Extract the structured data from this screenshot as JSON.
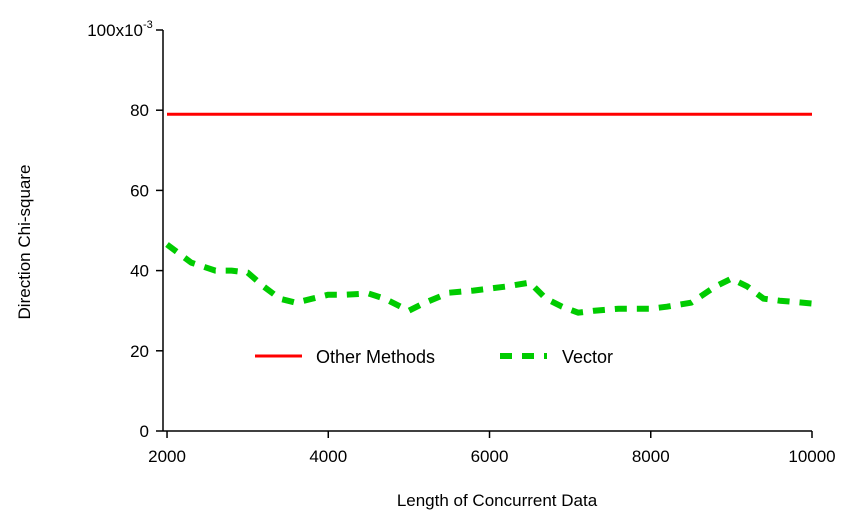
{
  "chart_data": {
    "type": "line",
    "title": "",
    "xlabel": "Length of Concurrent Data",
    "ylabel": "Direction Chi-square",
    "xlim": [
      1950,
      10000
    ],
    "ylim": [
      0,
      0.1
    ],
    "x_ticks": [
      2000,
      4000,
      6000,
      8000,
      10000
    ],
    "x_tick_labels": [
      "2000",
      "4000",
      "6000",
      "8000",
      "10000"
    ],
    "y_ticks": [
      0,
      0.02,
      0.04,
      0.06,
      0.08,
      0.1
    ],
    "y_tick_labels": [
      "0",
      "20",
      "40",
      "60",
      "80",
      "100x10"
    ],
    "y_exponent_label": "-3",
    "grid": false,
    "legend_position": "lower-center",
    "series": [
      {
        "name": "Other Methods",
        "color": "#ff0000",
        "style": "solid",
        "x": [
          2000,
          10000
        ],
        "y": [
          0.079,
          0.079
        ]
      },
      {
        "name": "Vector",
        "color": "#00cc00",
        "style": "dashed",
        "x": [
          2000,
          2300,
          2600,
          2800,
          3000,
          3200,
          3400,
          3600,
          3800,
          4000,
          4200,
          4500,
          4700,
          5000,
          5200,
          5500,
          5800,
          6200,
          6500,
          6700,
          6900,
          7100,
          7300,
          7600,
          8000,
          8200,
          8500,
          8800,
          9000,
          9200,
          9400,
          9600,
          10000
        ],
        "y": [
          0.0465,
          0.042,
          0.04,
          0.04,
          0.0395,
          0.036,
          0.033,
          0.032,
          0.033,
          0.034,
          0.034,
          0.0343,
          0.033,
          0.03,
          0.032,
          0.0345,
          0.035,
          0.036,
          0.037,
          0.033,
          0.031,
          0.0295,
          0.03,
          0.0305,
          0.0305,
          0.031,
          0.032,
          0.036,
          0.038,
          0.036,
          0.033,
          0.0325,
          0.0318
        ]
      }
    ]
  }
}
